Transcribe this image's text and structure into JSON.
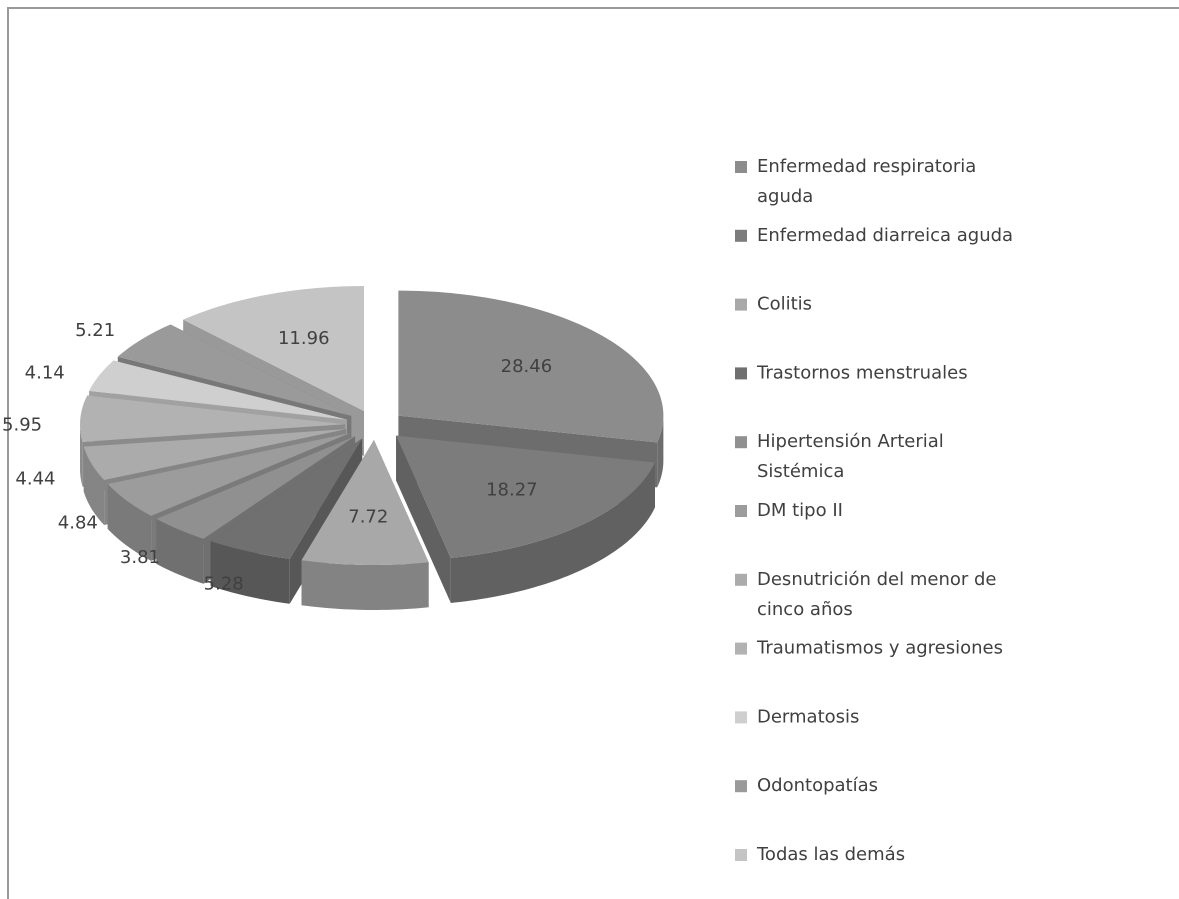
{
  "chart_data": {
    "type": "pie",
    "categories": [
      "Enfermedad respiratoria aguda",
      "Enfermedad diarreica aguda",
      "Colitis",
      "Trastornos menstruales",
      "Hipertensión Arterial Sistémica",
      "DM tipo II",
      "Desnutrición del menor de cinco años",
      "Traumatismos y agresiones",
      "Dermatosis",
      "Odontopatías",
      "Todas las demás"
    ],
    "values": [
      28.46,
      18.27,
      7.72,
      5.28,
      3.81,
      4.84,
      4.44,
      5.95,
      4.14,
      5.21,
      11.96
    ],
    "colors": [
      "#8c8c8c",
      "#7c7c7c",
      "#a8a8a8",
      "#707070",
      "#909090",
      "#9c9c9c",
      "#ababab",
      "#b2b2b2",
      "#cfcfcf",
      "#9a9a9a",
      "#c4c4c4"
    ],
    "legend": "right"
  }
}
